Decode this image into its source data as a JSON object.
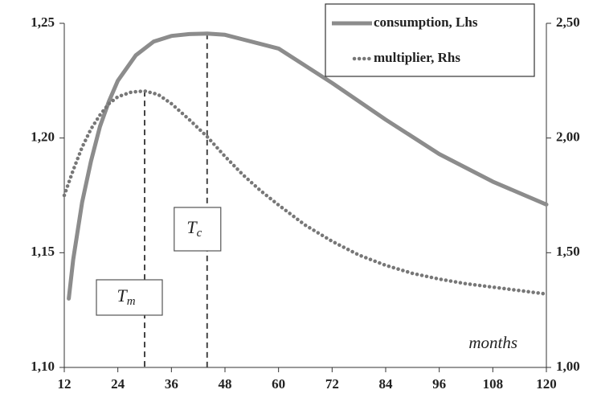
{
  "chart_data": {
    "type": "line",
    "x_label": "months",
    "xlim": [
      12,
      120
    ],
    "xticks": [
      12,
      24,
      36,
      48,
      60,
      72,
      84,
      96,
      108,
      120
    ],
    "ylim": [
      1.1,
      1.25
    ],
    "yticks": [
      {
        "value": 1.1,
        "label": "1,10"
      },
      {
        "value": 1.15,
        "label": "1,15"
      },
      {
        "value": 1.2,
        "label": "1,20"
      },
      {
        "value": 1.25,
        "label": "1,25"
      }
    ],
    "y2lim": [
      1.0,
      2.5
    ],
    "y2ticks": [
      {
        "value": 1.0,
        "label": "1,00"
      },
      {
        "value": 1.5,
        "label": "1,50"
      },
      {
        "value": 2.0,
        "label": "2,00"
      },
      {
        "value": 2.5,
        "label": "2,50"
      }
    ],
    "legend": "top-right",
    "series": [
      {
        "name": "consumption, Lhs",
        "color": "#8c8c8c",
        "style": "solid",
        "x": [
          13,
          14,
          16,
          18,
          20,
          22,
          24,
          28,
          32,
          36,
          40,
          44,
          48,
          52,
          56,
          60,
          72,
          84,
          96,
          108,
          120
        ],
        "values": [
          1.13,
          1.147,
          1.172,
          1.19,
          1.205,
          1.216,
          1.225,
          1.236,
          1.242,
          1.2445,
          1.2453,
          1.2455,
          1.245,
          1.243,
          1.241,
          1.239,
          1.224,
          1.208,
          1.193,
          1.181,
          1.171
        ]
      },
      {
        "name": "multiplier, Rhs",
        "color": "#777777",
        "style": "dotted",
        "axis": "y2",
        "x": [
          12,
          14,
          16,
          18,
          20,
          22,
          24,
          27,
          30,
          33,
          36,
          40,
          44,
          48,
          52,
          56,
          60,
          66,
          72,
          78,
          84,
          90,
          96,
          102,
          108,
          114,
          120
        ],
        "values": [
          1.75,
          1.86,
          1.96,
          2.04,
          2.1,
          2.15,
          2.18,
          2.2,
          2.205,
          2.19,
          2.15,
          2.08,
          2.006,
          1.92,
          1.84,
          1.77,
          1.708,
          1.62,
          1.55,
          1.49,
          1.445,
          1.41,
          1.385,
          1.365,
          1.35,
          1.335,
          1.32
        ]
      }
    ],
    "annotations": [
      {
        "label": "T",
        "subscript": "m",
        "x": 30
      },
      {
        "label": "T",
        "subscript": "c",
        "x": 44
      }
    ]
  }
}
